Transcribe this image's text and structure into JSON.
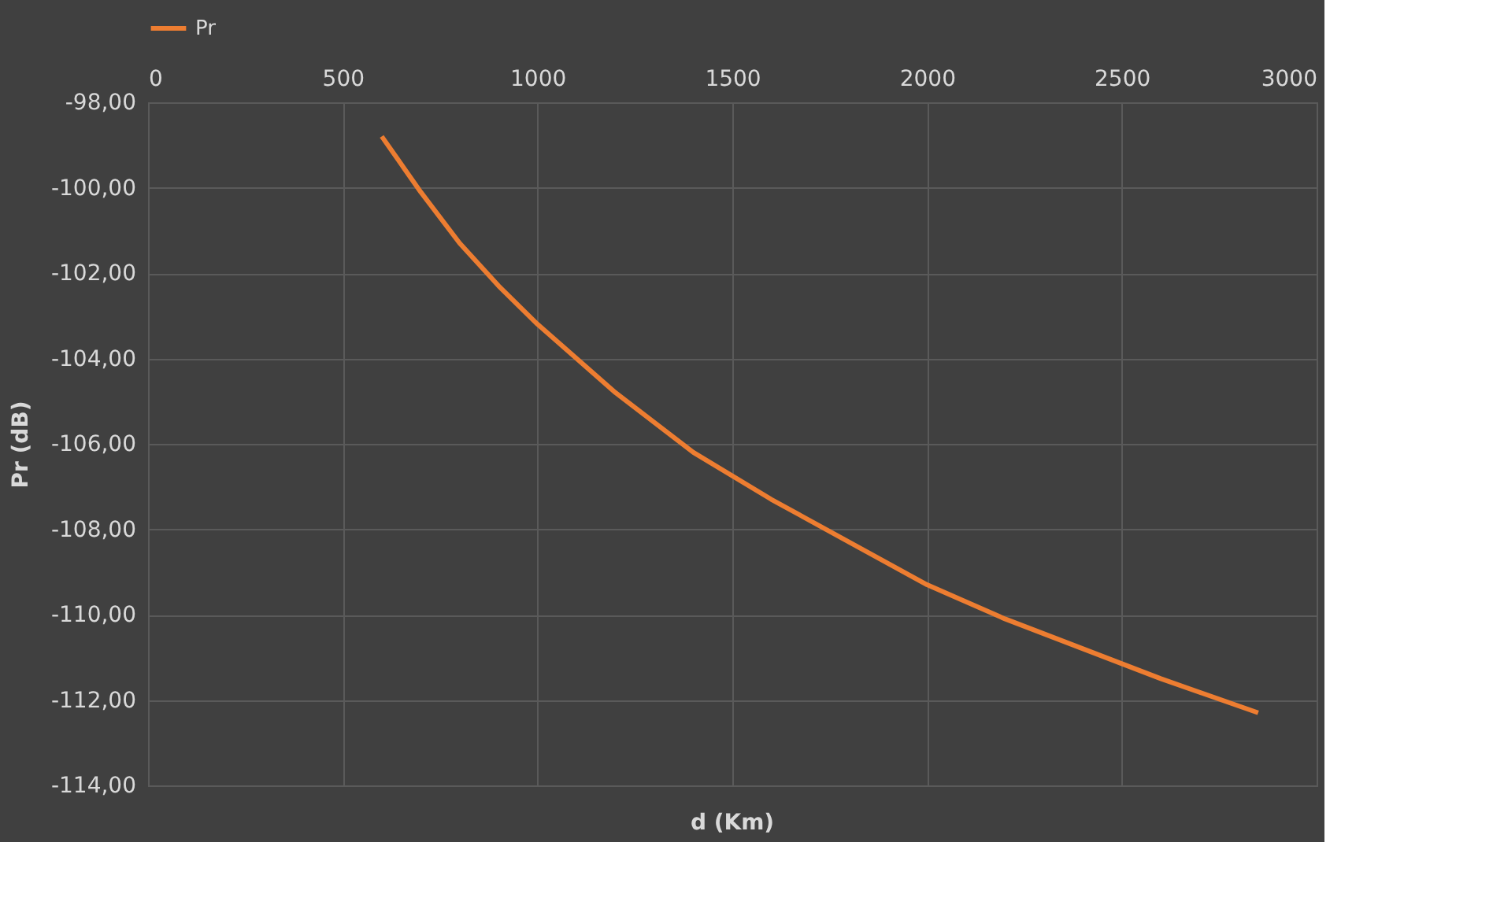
{
  "chart_data": {
    "type": "line",
    "xlabel": "d (Km)",
    "ylabel": "Pr (dB)",
    "legend": "top",
    "grid": true,
    "marker": "none",
    "line_style": "solid",
    "x": [
      600,
      700,
      800,
      900,
      1000,
      1200,
      1400,
      1600,
      1800,
      2000,
      2200,
      2400,
      2600,
      2850
    ],
    "series": [
      {
        "name": "Pr",
        "color": "#ed7d31",
        "values": [
          -98.8,
          -100.1,
          -101.3,
          -102.3,
          -103.2,
          -104.8,
          -106.2,
          -107.3,
          -108.3,
          -109.3,
          -110.1,
          -110.8,
          -111.5,
          -112.3
        ]
      }
    ],
    "xlim": [
      0,
      3000
    ],
    "xticks": [
      0,
      500,
      1000,
      1500,
      2000,
      2500,
      3000
    ],
    "ylim": [
      -114,
      -98
    ],
    "yticks": [
      {
        "value": -98,
        "label": "-98,00"
      },
      {
        "value": -100,
        "label": "-100,00"
      },
      {
        "value": -102,
        "label": "-102,00"
      },
      {
        "value": -104,
        "label": "-104,00"
      },
      {
        "value": -106,
        "label": "-106,00"
      },
      {
        "value": -108,
        "label": "-108,00"
      },
      {
        "value": -110,
        "label": "-110,00"
      },
      {
        "value": -112,
        "label": "-112,00"
      },
      {
        "value": -114,
        "label": "-114,00"
      }
    ]
  }
}
